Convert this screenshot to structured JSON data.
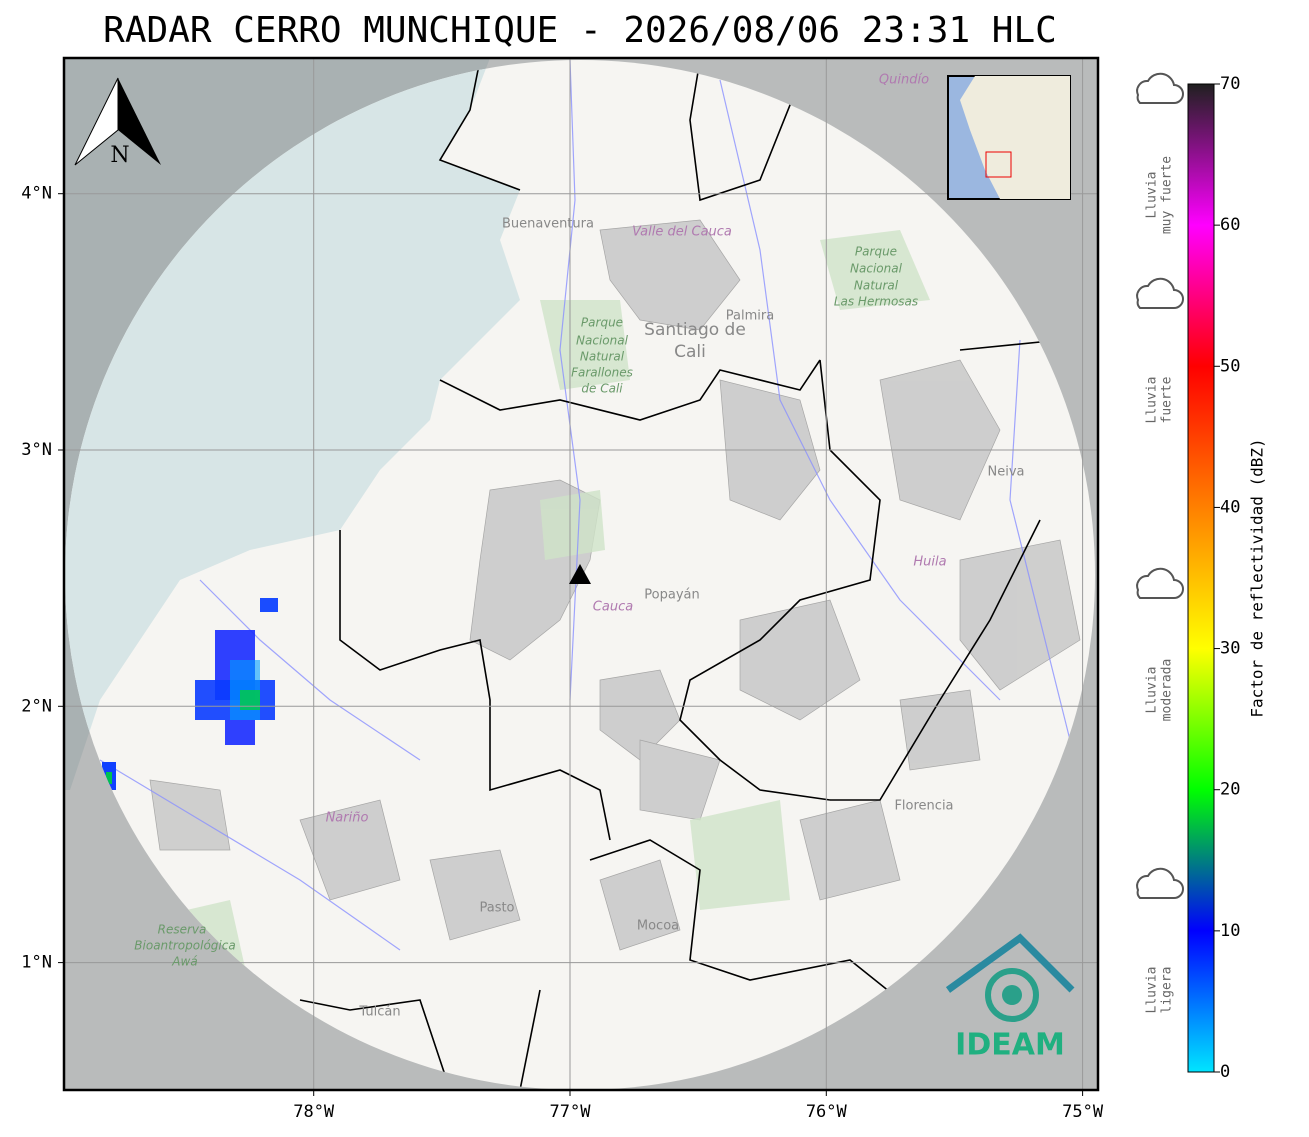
{
  "title": "RADAR CERRO MUNCHIQUE - 2026/08/06 23:31 HLC",
  "north": "N",
  "logo": "IDEAM",
  "xticks": [
    {
      "value": -78,
      "label": "78°W"
    },
    {
      "value": -77,
      "label": "77°W"
    },
    {
      "value": -76,
      "label": "76°W"
    },
    {
      "value": -75,
      "label": "75°W"
    }
  ],
  "yticks": [
    {
      "value": 4,
      "label": "4°N"
    },
    {
      "value": 3,
      "label": "3°N"
    },
    {
      "value": 2,
      "label": "2°N"
    },
    {
      "value": 1,
      "label": "1°N"
    }
  ],
  "colorbar": {
    "label": "Factor de reflectividad (dBZ)",
    "range": [
      0,
      70
    ],
    "ticks": [
      0,
      10,
      20,
      30,
      40,
      50,
      60,
      70
    ],
    "colors": [
      "#00e5ff",
      "#0000ff",
      "#00ff00",
      "#ffff00",
      "#ff8000",
      "#ff0000",
      "#ff00ff",
      "#202020"
    ]
  },
  "legend": [
    {
      "lines": [
        "Lluvia",
        "muy fuerte"
      ]
    },
    {
      "lines": [
        "Lluvia",
        "fuerte"
      ]
    },
    {
      "lines": [
        "Lluvia",
        "moderada"
      ]
    },
    {
      "lines": [
        "Lluvia",
        "ligera"
      ]
    }
  ],
  "places": [
    {
      "name": "Buenaventura",
      "kind": "place"
    },
    {
      "name": "Valle del Cauca",
      "kind": "dept"
    },
    {
      "name": "Quindío",
      "kind": "dept"
    },
    {
      "name": "Santiago de",
      "kind": "placebig"
    },
    {
      "name": "Cali",
      "kind": "placebig"
    },
    {
      "name": "Palmira",
      "kind": "place"
    },
    {
      "name": "Parque",
      "kind": "park"
    },
    {
      "name": "Nacional",
      "kind": "park"
    },
    {
      "name": "Natural",
      "kind": "park"
    },
    {
      "name": "Farallones",
      "kind": "park"
    },
    {
      "name": "de Cali",
      "kind": "park"
    },
    {
      "name": "Parque",
      "kind": "park"
    },
    {
      "name": "Nacional",
      "kind": "park"
    },
    {
      "name": "Natural",
      "kind": "park"
    },
    {
      "name": "Las Hermosas",
      "kind": "park"
    },
    {
      "name": "Neiva",
      "kind": "place"
    },
    {
      "name": "Huila",
      "kind": "dept"
    },
    {
      "name": "Cauca",
      "kind": "dept"
    },
    {
      "name": "Popayán",
      "kind": "place"
    },
    {
      "name": "Nariño",
      "kind": "dept"
    },
    {
      "name": "Pasto",
      "kind": "place"
    },
    {
      "name": "Mocoa",
      "kind": "place"
    },
    {
      "name": "Florencia",
      "kind": "place"
    },
    {
      "name": "Tulcán",
      "kind": "place"
    },
    {
      "name": "Reserva",
      "kind": "park"
    },
    {
      "name": "Bioantropológica",
      "kind": "park"
    },
    {
      "name": "Awá",
      "kind": "park"
    }
  ]
}
